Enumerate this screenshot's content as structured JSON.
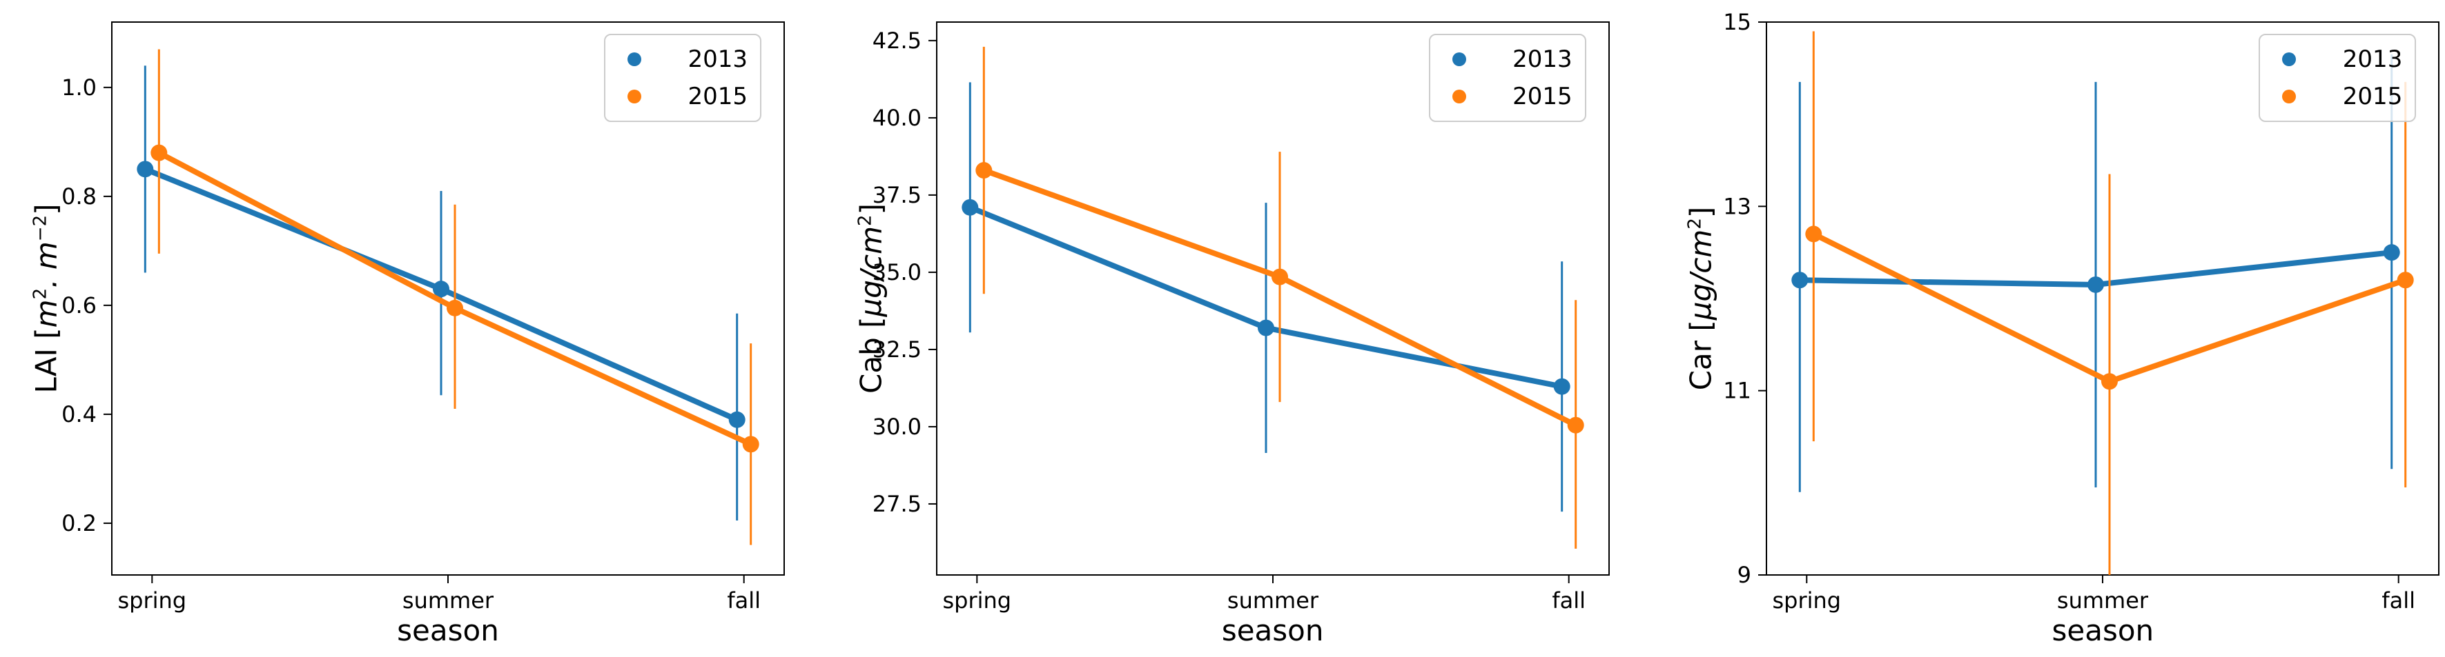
{
  "figure": {
    "background": "#ffffff",
    "series_colors": {
      "2013": "#1f77b4",
      "2015": "#ff7f0e"
    },
    "xlabel": "season",
    "categories": [
      "spring",
      "summer",
      "fall"
    ]
  },
  "chart_data": [
    {
      "type": "line",
      "title": "",
      "xlabel": "season",
      "ylabel": {
        "name": "LAI",
        "unit": "m^2. m^-2"
      },
      "categories": [
        "spring",
        "summer",
        "fall"
      ],
      "yticks": [
        0.2,
        0.4,
        0.6,
        0.8,
        1.0
      ],
      "ytick_labels": [
        "0.2",
        "0.4",
        "0.6",
        "0.8",
        "1.0"
      ],
      "ylim": [
        0.105,
        1.12
      ],
      "grid": false,
      "legend": {
        "position": "upper right",
        "entries": [
          "2013",
          "2015"
        ]
      },
      "series": [
        {
          "name": "2013",
          "color": "#1f77b4",
          "values": [
            0.85,
            0.63,
            0.39
          ],
          "err_low": [
            0.66,
            0.435,
            0.205
          ],
          "err_high": [
            1.04,
            0.81,
            0.585
          ]
        },
        {
          "name": "2015",
          "color": "#ff7f0e",
          "values": [
            0.88,
            0.595,
            0.345
          ],
          "err_low": [
            0.695,
            0.41,
            0.16
          ],
          "err_high": [
            1.07,
            0.785,
            0.53
          ]
        }
      ]
    },
    {
      "type": "line",
      "title": "",
      "xlabel": "season",
      "ylabel": {
        "name": "Cab",
        "unit": "µg/cm^2"
      },
      "categories": [
        "spring",
        "summer",
        "fall"
      ],
      "yticks": [
        27.5,
        30.0,
        32.5,
        35.0,
        37.5,
        40.0,
        42.5
      ],
      "ytick_labels": [
        "27.5",
        "30.0",
        "32.5",
        "35.0",
        "37.5",
        "40.0",
        "42.5"
      ],
      "ylim": [
        25.2,
        43.1
      ],
      "grid": false,
      "legend": {
        "position": "upper right",
        "entries": [
          "2013",
          "2015"
        ]
      },
      "series": [
        {
          "name": "2013",
          "color": "#1f77b4",
          "values": [
            37.1,
            33.2,
            31.3
          ],
          "err_low": [
            33.05,
            29.15,
            27.25
          ],
          "err_high": [
            41.15,
            37.25,
            35.35
          ]
        },
        {
          "name": "2015",
          "color": "#ff7f0e",
          "values": [
            38.3,
            34.85,
            30.05
          ],
          "err_low": [
            34.3,
            30.8,
            26.05
          ],
          "err_high": [
            42.3,
            38.9,
            34.1
          ]
        }
      ]
    },
    {
      "type": "line",
      "title": "",
      "xlabel": "season",
      "ylabel": {
        "name": "Car",
        "unit": "µg/cm^2"
      },
      "categories": [
        "spring",
        "summer",
        "fall"
      ],
      "yticks": [
        9,
        11,
        13,
        15
      ],
      "ytick_labels": [
        "9",
        "11",
        "13",
        "15"
      ],
      "ylim": [
        9,
        15
      ],
      "grid": false,
      "legend": {
        "position": "upper right",
        "entries": [
          "2013",
          "2015"
        ]
      },
      "series": [
        {
          "name": "2013",
          "color": "#1f77b4",
          "values": [
            12.2,
            12.15,
            12.5
          ],
          "err_low": [
            9.9,
            9.95,
            10.15
          ],
          "err_high": [
            14.35,
            14.35,
            14.65
          ]
        },
        {
          "name": "2015",
          "color": "#ff7f0e",
          "values": [
            12.7,
            11.1,
            12.2
          ],
          "err_low": [
            10.45,
            8.85,
            9.95
          ],
          "err_high": [
            14.9,
            13.35,
            14.35
          ]
        }
      ]
    }
  ]
}
